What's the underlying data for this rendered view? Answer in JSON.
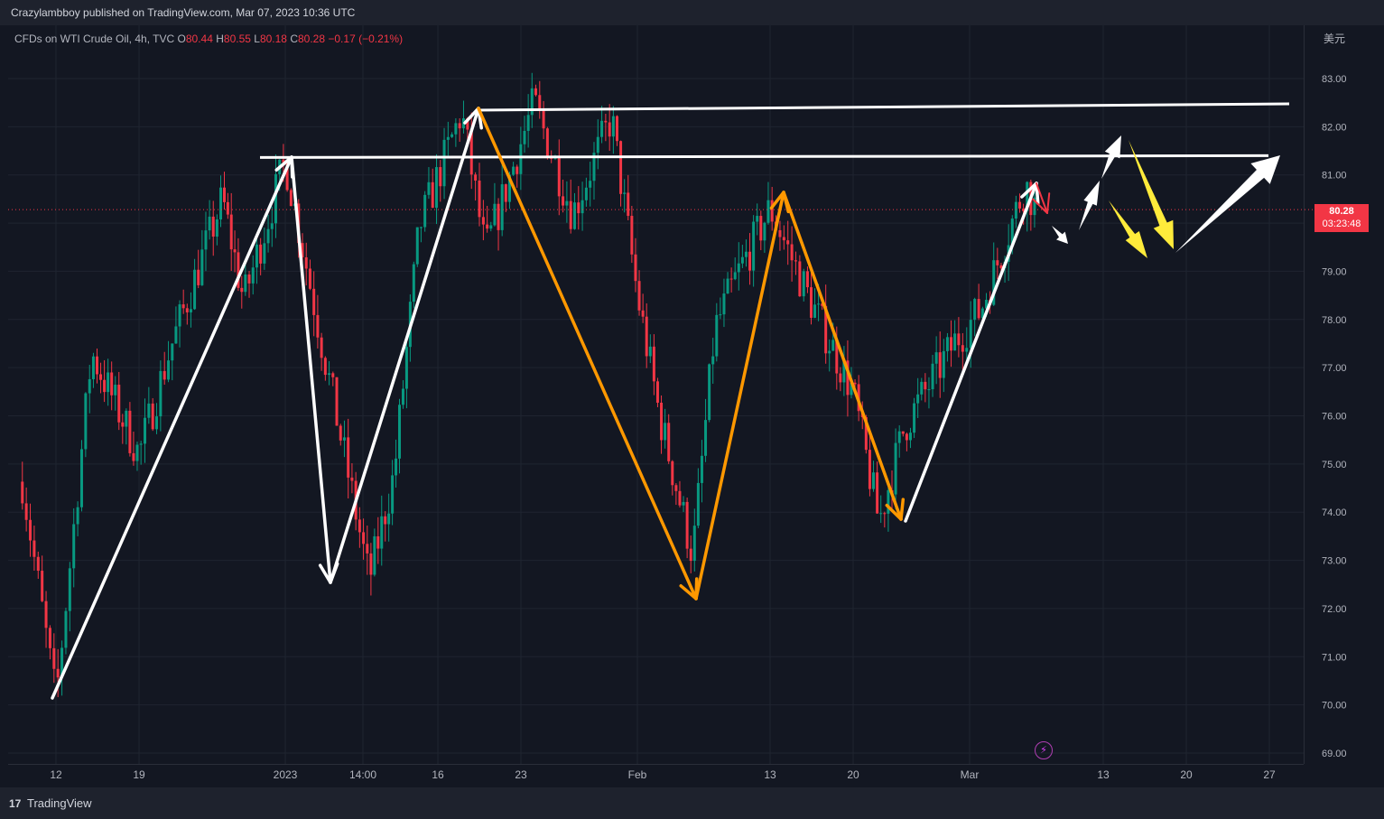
{
  "header": {
    "published": "Crazylambboy published on TradingView.com, Mar 07, 2023 10:36 UTC"
  },
  "legend": {
    "symbol": "CFDs on WTI Crude Oil, 4h, TVC",
    "o_label": "O",
    "o_value": "80.44",
    "h_label": "H",
    "h_value": "80.55",
    "l_label": "L",
    "l_value": "80.18",
    "c_label": "C",
    "c_value": "80.28",
    "change": "−0.17 (−0.21%)"
  },
  "currency": "美元",
  "last_price": {
    "value": "80.28",
    "countdown": "03:23:48"
  },
  "footer": {
    "brand": "TradingView"
  },
  "colors": {
    "up": "#089981",
    "down": "#f23645",
    "background": "#131722",
    "annotation_white": "#ffffff",
    "annotation_orange": "#ff9800",
    "annotation_yellow": "#ffeb3b"
  },
  "chart_data": {
    "type": "candlestick",
    "timeframe": "4h",
    "ylim": [
      68.8,
      84.5
    ],
    "y_ticks": [
      "83.00",
      "82.00",
      "81.00",
      "80.00",
      "79.00",
      "78.00",
      "77.00",
      "76.00",
      "75.00",
      "74.00",
      "73.00",
      "72.00",
      "71.00",
      "70.00",
      "69.00"
    ],
    "x_ticks": [
      "12",
      "19",
      "2023",
      "14:00",
      "16",
      "23",
      "Feb",
      "13",
      "20",
      "Mar",
      "13",
      "20",
      "27"
    ],
    "last_close": 80.28,
    "horizontal_levels": [
      81.4,
      82.4
    ],
    "path_points": [
      {
        "date": "2022-12-09",
        "price": 74.9
      },
      {
        "date": "2022-12-12",
        "price": 70.1
      },
      {
        "date": "2022-12-15",
        "price": 77.3
      },
      {
        "date": "2022-12-19",
        "price": 75.2
      },
      {
        "date": "2022-12-22",
        "price": 77.4
      },
      {
        "date": "2022-12-27",
        "price": 80.5
      },
      {
        "date": "2022-12-29",
        "price": 78.4
      },
      {
        "date": "2023-01-02",
        "price": 81.3
      },
      {
        "date": "2023-01-05",
        "price": 72.6
      },
      {
        "date": "2023-01-09",
        "price": 74.8
      },
      {
        "date": "2023-01-13",
        "price": 79.9
      },
      {
        "date": "2023-01-18",
        "price": 82.3
      },
      {
        "date": "2023-01-20",
        "price": 79.4
      },
      {
        "date": "2023-01-24",
        "price": 82.5
      },
      {
        "date": "2023-01-27",
        "price": 80.2
      },
      {
        "date": "2023-01-30",
        "price": 82.2
      },
      {
        "date": "2023-02-01",
        "price": 78.5
      },
      {
        "date": "2023-02-03",
        "price": 76.0
      },
      {
        "date": "2023-02-06",
        "price": 73.1
      },
      {
        "date": "2023-02-08",
        "price": 77.8
      },
      {
        "date": "2023-02-10",
        "price": 78.9
      },
      {
        "date": "2023-02-13",
        "price": 80.3
      },
      {
        "date": "2023-02-16",
        "price": 78.6
      },
      {
        "date": "2023-02-20",
        "price": 76.5
      },
      {
        "date": "2023-02-22",
        "price": 73.8
      },
      {
        "date": "2023-02-24",
        "price": 75.8
      },
      {
        "date": "2023-02-28",
        "price": 77.6
      },
      {
        "date": "2023-03-02",
        "price": 78.2
      },
      {
        "date": "2023-03-06",
        "price": 80.8
      },
      {
        "date": "2023-03-07",
        "price": 80.28
      }
    ]
  }
}
